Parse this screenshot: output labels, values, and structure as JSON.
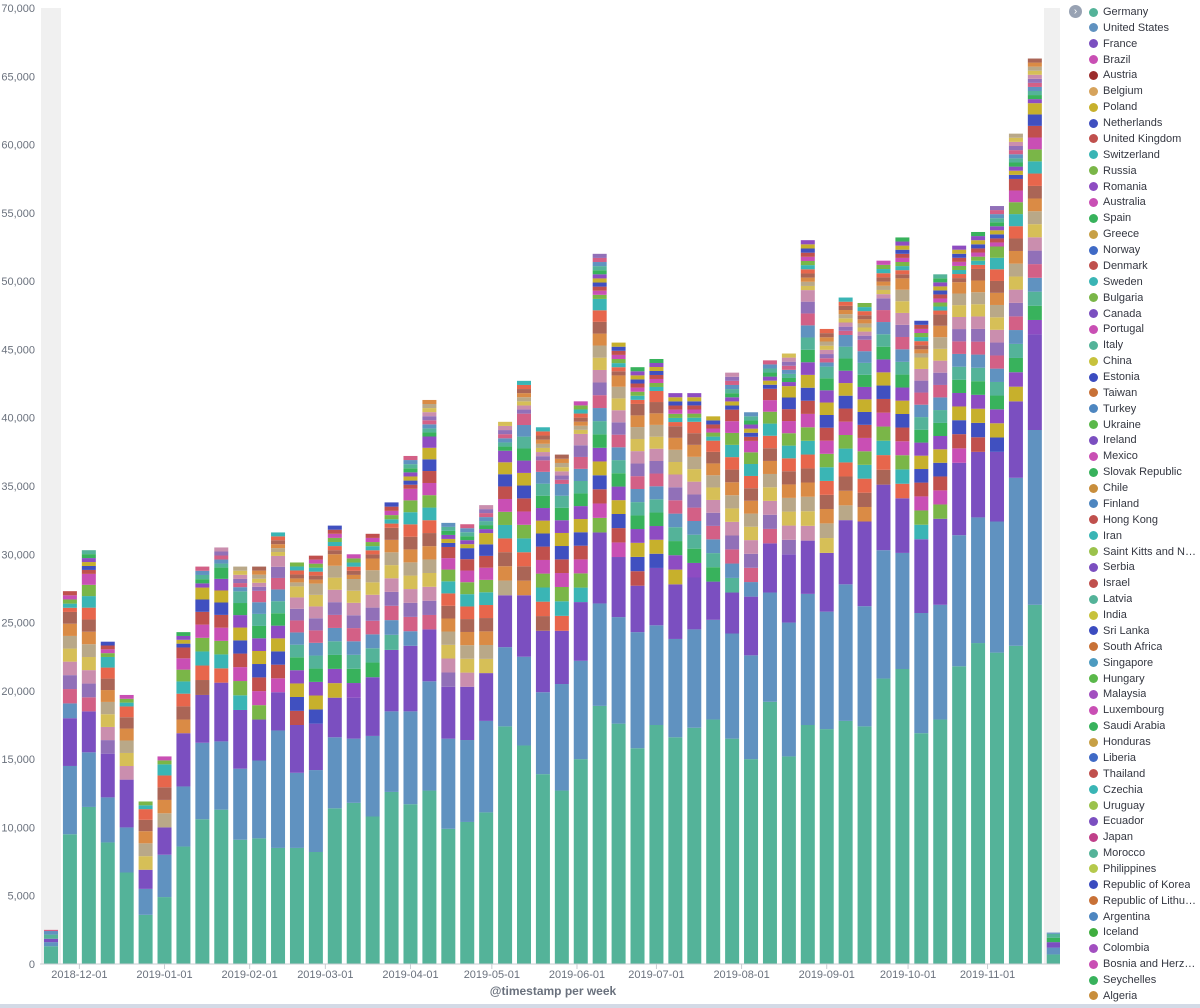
{
  "chart_data": {
    "type": "bar",
    "stacked": true,
    "xlabel": "@timestamp per week",
    "ylabel": "",
    "ylim": [
      0,
      70000
    ],
    "y_ticks": [
      "0",
      "5,000",
      "10,000",
      "15,000",
      "20,000",
      "25,000",
      "30,000",
      "35,000",
      "40,000",
      "45,000",
      "50,000",
      "55,000",
      "60,000",
      "65,000",
      "70,000"
    ],
    "y_tick_values": [
      0,
      5000,
      10000,
      15000,
      20000,
      25000,
      30000,
      35000,
      40000,
      45000,
      50000,
      55000,
      60000,
      65000,
      70000
    ],
    "x_tick_labels": [
      "2018-12-01",
      "2019-01-01",
      "2019-02-01",
      "2019-03-01",
      "2019-04-01",
      "2019-05-01",
      "2019-06-01",
      "2019-07-01",
      "2019-08-01",
      "2019-09-01",
      "2019-10-01",
      "2019-11-01"
    ],
    "x_tick_bar_index": [
      1.5,
      6,
      10.5,
      14.5,
      19,
      23.3,
      27.8,
      32,
      36.5,
      41,
      45.3,
      49.5
    ],
    "grid": false,
    "legend_placement": "right",
    "main_series_colors": [
      "#54b399",
      "#6092c0",
      "#7b4fc0",
      "#d36086"
    ],
    "bars": [
      {
        "week": 1,
        "total": 2500,
        "germany": 1300,
        "united_states": 300,
        "france": 250
      },
      {
        "week": 2,
        "total": 27300,
        "germany": 9500,
        "united_states": 5000,
        "france": 3500
      },
      {
        "week": 3,
        "total": 30300,
        "germany": 11500,
        "united_states": 4000,
        "france": 3000
      },
      {
        "week": 4,
        "total": 23600,
        "germany": 8900,
        "united_states": 3300,
        "france": 3200
      },
      {
        "week": 5,
        "total": 19700,
        "germany": 6700,
        "united_states": 3300,
        "france": 3500
      },
      {
        "week": 6,
        "total": 11900,
        "germany": 3600,
        "united_states": 1900,
        "france": 1400
      },
      {
        "week": 7,
        "total": 15200,
        "germany": 4900,
        "united_states": 3100,
        "france": 2000
      },
      {
        "week": 8,
        "total": 24300,
        "germany": 8600,
        "united_states": 4400,
        "france": 3900
      },
      {
        "week": 9,
        "total": 29100,
        "germany": 10600,
        "united_states": 5600,
        "france": 3500
      },
      {
        "week": 10,
        "total": 30500,
        "germany": 11300,
        "united_states": 5000,
        "france": 4300
      },
      {
        "week": 11,
        "total": 29100,
        "germany": 9100,
        "united_states": 5200,
        "france": 4300
      },
      {
        "week": 12,
        "total": 29100,
        "germany": 9200,
        "united_states": 5700,
        "france": 3000
      },
      {
        "week": 13,
        "total": 31600,
        "germany": 8500,
        "united_states": 8600,
        "france": 2800
      },
      {
        "week": 14,
        "total": 29400,
        "germany": 8500,
        "united_states": 5500,
        "france": 3500
      },
      {
        "week": 15,
        "total": 29900,
        "germany": 8200,
        "united_states": 6000,
        "france": 3400
      },
      {
        "week": 16,
        "total": 32100,
        "germany": 11400,
        "united_states": 5200,
        "france": 2900
      },
      {
        "week": 17,
        "total": 30000,
        "germany": 11800,
        "united_states": 4700,
        "france": 3000
      },
      {
        "week": 18,
        "total": 31500,
        "germany": 10800,
        "united_states": 5900,
        "france": 4300
      },
      {
        "week": 19,
        "total": 33800,
        "germany": 12600,
        "united_states": 5900,
        "france": 4500
      },
      {
        "week": 20,
        "total": 37200,
        "germany": 11700,
        "united_states": 6800,
        "france": 4800
      },
      {
        "week": 21,
        "total": 41300,
        "germany": 12700,
        "united_states": 8000,
        "france": 3800
      },
      {
        "week": 22,
        "total": 32300,
        "germany": 9900,
        "united_states": 6600,
        "france": 3800
      },
      {
        "week": 23,
        "total": 32200,
        "germany": 10400,
        "united_states": 6000,
        "france": 3900
      },
      {
        "week": 24,
        "total": 33600,
        "germany": 11100,
        "united_states": 6700,
        "france": 3500
      },
      {
        "week": 25,
        "total": 39700,
        "germany": 17400,
        "united_states": 5800,
        "france": 3800
      },
      {
        "week": 26,
        "total": 42700,
        "germany": 16000,
        "united_states": 6500,
        "france": 4500
      },
      {
        "week": 27,
        "total": 39300,
        "germany": 13900,
        "united_states": 6000,
        "france": 4500
      },
      {
        "week": 28,
        "total": 37300,
        "germany": 12700,
        "united_states": 7800,
        "france": 3900
      },
      {
        "week": 29,
        "total": 41200,
        "germany": 15000,
        "united_states": 7200,
        "france": 4300
      },
      {
        "week": 30,
        "total": 52000,
        "germany": 18900,
        "united_states": 7500,
        "france": 5200
      },
      {
        "week": 31,
        "total": 45500,
        "germany": 17600,
        "united_states": 7800,
        "france": 4400
      },
      {
        "week": 32,
        "total": 43700,
        "germany": 15800,
        "united_states": 8500,
        "france": 3400
      },
      {
        "week": 33,
        "total": 44300,
        "germany": 17500,
        "united_states": 7300,
        "france": 4200
      },
      {
        "week": 34,
        "total": 41800,
        "germany": 16600,
        "united_states": 7200,
        "france": 4000
      },
      {
        "week": 35,
        "total": 41800,
        "germany": 17300,
        "united_states": 7200,
        "france": 3800
      },
      {
        "week": 36,
        "total": 40100,
        "germany": 17900,
        "united_states": 7300,
        "france": 2800
      },
      {
        "week": 37,
        "total": 43300,
        "germany": 16500,
        "united_states": 7700,
        "france": 3000
      },
      {
        "week": 38,
        "total": 40400,
        "germany": 15000,
        "united_states": 7600,
        "france": 4300
      },
      {
        "week": 39,
        "total": 44200,
        "germany": 19200,
        "united_states": 8000,
        "france": 3600
      },
      {
        "week": 40,
        "total": 44700,
        "germany": 15200,
        "united_states": 9800,
        "france": 5000
      },
      {
        "week": 41,
        "total": 53000,
        "germany": 17500,
        "united_states": 9600,
        "france": 3900
      },
      {
        "week": 42,
        "total": 46500,
        "germany": 17200,
        "united_states": 8600,
        "france": 4300
      },
      {
        "week": 43,
        "total": 48800,
        "germany": 17800,
        "united_states": 10000,
        "france": 4700
      },
      {
        "week": 44,
        "total": 48400,
        "germany": 17400,
        "united_states": 8800,
        "france": 6200
      },
      {
        "week": 45,
        "total": 51500,
        "germany": 20900,
        "united_states": 9400,
        "france": 4800
      },
      {
        "week": 46,
        "total": 53200,
        "germany": 21600,
        "united_states": 8500,
        "france": 4000
      },
      {
        "week": 47,
        "total": 47100,
        "germany": 16900,
        "united_states": 8800,
        "france": 5400
      },
      {
        "week": 48,
        "total": 50500,
        "germany": 17900,
        "united_states": 8400,
        "france": 6300
      },
      {
        "week": 49,
        "total": 52600,
        "germany": 21800,
        "united_states": 9600,
        "france": 5300
      },
      {
        "week": 50,
        "total": 53600,
        "germany": 23500,
        "united_states": 9200,
        "france": 4800
      },
      {
        "week": 51,
        "total": 55500,
        "germany": 22800,
        "united_states": 9600,
        "france": 5100
      },
      {
        "week": 52,
        "total": 60800,
        "germany": 23300,
        "united_states": 12300,
        "france": 5600
      },
      {
        "week": 53,
        "total": 66300,
        "germany": 26300,
        "united_states": 12800,
        "france": 7000
      },
      {
        "week": 54,
        "total": 2300,
        "germany": 700,
        "united_states": 500,
        "france": 400
      }
    ]
  },
  "legend": {
    "toggle_icon": "›",
    "items": [
      {
        "label": "Germany",
        "color": "#54b399"
      },
      {
        "label": "United States",
        "color": "#6092c0"
      },
      {
        "label": "France",
        "color": "#7b4fc0"
      },
      {
        "label": "Brazil",
        "color": "#c94fb4"
      },
      {
        "label": "Austria",
        "color": "#9c2d2d"
      },
      {
        "label": "Belgium",
        "color": "#d6a35c"
      },
      {
        "label": "Poland",
        "color": "#c7b02c"
      },
      {
        "label": "Netherlands",
        "color": "#4050c0"
      },
      {
        "label": "United Kingdom",
        "color": "#c0504d"
      },
      {
        "label": "Switzerland",
        "color": "#3ab5b5"
      },
      {
        "label": "Russia",
        "color": "#7ab648"
      },
      {
        "label": "Romania",
        "color": "#8e4cc2"
      },
      {
        "label": "Australia",
        "color": "#c94fb4"
      },
      {
        "label": "Spain",
        "color": "#38b25c"
      },
      {
        "label": "Greece",
        "color": "#c7a045"
      },
      {
        "label": "Norway",
        "color": "#3f6ac6"
      },
      {
        "label": "Denmark",
        "color": "#c0504d"
      },
      {
        "label": "Sweden",
        "color": "#3ab5b5"
      },
      {
        "label": "Bulgaria",
        "color": "#7ab648"
      },
      {
        "label": "Canada",
        "color": "#7b4fc0"
      },
      {
        "label": "Portugal",
        "color": "#c94fb4"
      },
      {
        "label": "Italy",
        "color": "#54b399"
      },
      {
        "label": "China",
        "color": "#c7c23c"
      },
      {
        "label": "Estonia",
        "color": "#3b4cc0"
      },
      {
        "label": "Taiwan",
        "color": "#c87137"
      },
      {
        "label": "Turkey",
        "color": "#4d86c0"
      },
      {
        "label": "Ukraine",
        "color": "#5ab84a"
      },
      {
        "label": "Ireland",
        "color": "#7b4fc0"
      },
      {
        "label": "Mexico",
        "color": "#c94fb4"
      },
      {
        "label": "Slovak Republic",
        "color": "#38b25c"
      },
      {
        "label": "Chile",
        "color": "#c88e3c"
      },
      {
        "label": "Finland",
        "color": "#4d86c0"
      },
      {
        "label": "Hong Kong",
        "color": "#c0504d"
      },
      {
        "label": "Iran",
        "color": "#3ab5b5"
      },
      {
        "label": "Saint Kitts and Nevis",
        "color": "#9bc24c"
      },
      {
        "label": "Serbia",
        "color": "#7b4fc0"
      },
      {
        "label": "Israel",
        "color": "#c0504d"
      },
      {
        "label": "Latvia",
        "color": "#54b399"
      },
      {
        "label": "India",
        "color": "#c7c23c"
      },
      {
        "label": "Sri Lanka",
        "color": "#3b4cc0"
      },
      {
        "label": "South Africa",
        "color": "#c87137"
      },
      {
        "label": "Singapore",
        "color": "#4d9bc0"
      },
      {
        "label": "Hungary",
        "color": "#5ab84a"
      },
      {
        "label": "Malaysia",
        "color": "#a24fc0"
      },
      {
        "label": "Luxembourg",
        "color": "#c94fb4"
      },
      {
        "label": "Saudi Arabia",
        "color": "#38b25c"
      },
      {
        "label": "Honduras",
        "color": "#c7a045"
      },
      {
        "label": "Liberia",
        "color": "#3f6ac6"
      },
      {
        "label": "Thailand",
        "color": "#c0504d"
      },
      {
        "label": "Czechia",
        "color": "#3ab5b5"
      },
      {
        "label": "Uruguay",
        "color": "#9bc24c"
      },
      {
        "label": "Ecuador",
        "color": "#7b4fc0"
      },
      {
        "label": "Japan",
        "color": "#c0408a"
      },
      {
        "label": "Morocco",
        "color": "#54b399"
      },
      {
        "label": "Philippines",
        "color": "#b5c94c"
      },
      {
        "label": "Republic of Korea",
        "color": "#3b4cc0"
      },
      {
        "label": "Republic of Lithua...",
        "color": "#c87137"
      },
      {
        "label": "Argentina",
        "color": "#4d86c0"
      },
      {
        "label": "Iceland",
        "color": "#3fae3f"
      },
      {
        "label": "Colombia",
        "color": "#a24fc0"
      },
      {
        "label": "Bosnia and Herzeg...",
        "color": "#c94fb4"
      },
      {
        "label": "Seychelles",
        "color": "#38b25c"
      },
      {
        "label": "Algeria",
        "color": "#c88e3c"
      }
    ]
  },
  "stripe_palette": [
    "#54b399",
    "#6092c0",
    "#d36086",
    "#9170b8",
    "#ca8eae",
    "#d6bf57",
    "#b9a888",
    "#da8b45",
    "#aa6556",
    "#e7664c",
    "#3ab5b5",
    "#7ab648",
    "#c94fb4",
    "#c0504d",
    "#4050c0",
    "#c7b02c",
    "#8e4cc2",
    "#38b25c"
  ]
}
